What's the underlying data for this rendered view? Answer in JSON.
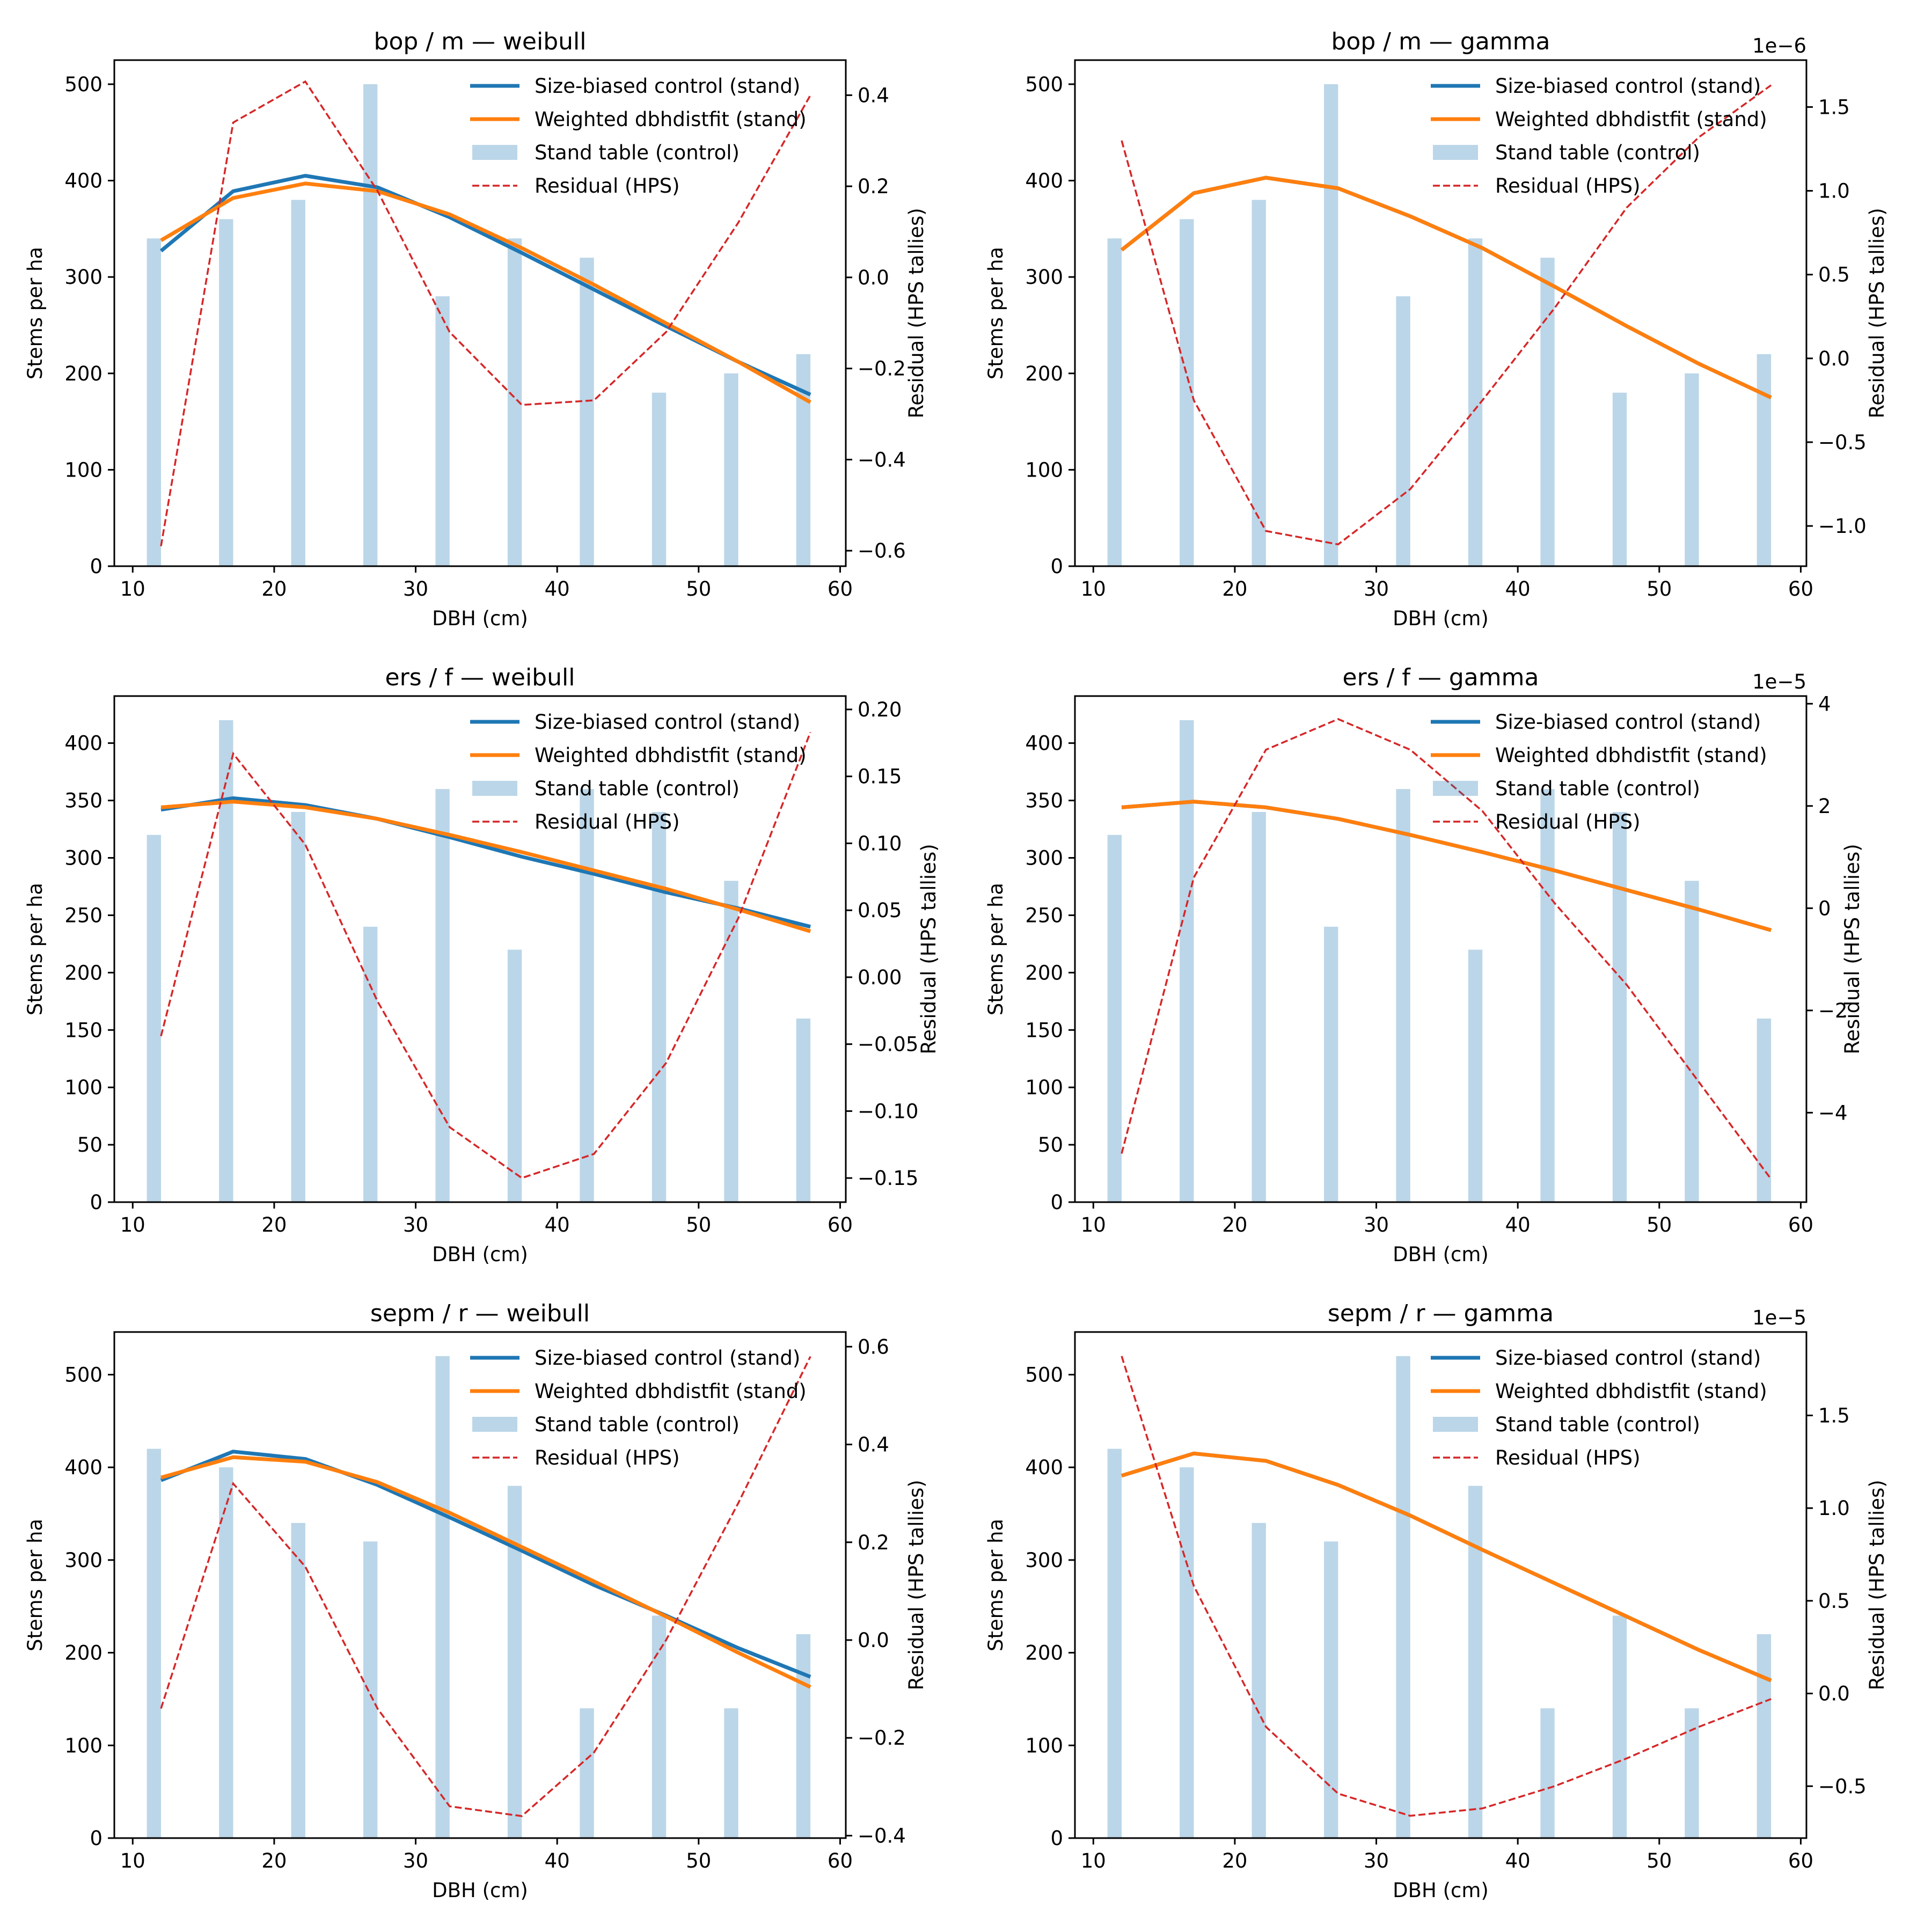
{
  "figure": {
    "panels_layout": "3 rows x 2 columns"
  },
  "colors": {
    "size_biased": "#1f77b4",
    "weighted": "#ff7f0e",
    "stand_table": "#1f77b4",
    "stand_table_alpha": 0.3,
    "residual": "#d62728"
  },
  "legend": {
    "placement": "upper-right",
    "entries": [
      {
        "label": "Size-biased control (stand)",
        "kind": "line"
      },
      {
        "label": "Weighted dbhdistfit (stand)",
        "kind": "line"
      },
      {
        "label": "Stand table (control)",
        "kind": "patch"
      },
      {
        "label": "Residual (HPS)",
        "kind": "dashed"
      }
    ]
  },
  "chart_data": [
    {
      "type": "bar+line",
      "title": "bop / m — weibull",
      "xlabel": "DBH (cm)",
      "ylabel": "Stems per ha",
      "y2label": "Residual (HPS tallies)",
      "xlim": [
        8.7,
        60.4
      ],
      "xticks": [
        10,
        20,
        30,
        40,
        50,
        60
      ],
      "ylim": [
        0,
        525
      ],
      "yticks": [
        0,
        100,
        200,
        300,
        400,
        500
      ],
      "y2lim": [
        -0.634,
        0.477
      ],
      "y2ticks": [
        -0.6,
        -0.4,
        -0.2,
        0.0,
        0.2,
        0.4
      ],
      "y2ticklabels": [
        "−0.6",
        "−0.4",
        "−0.2",
        "0.0",
        "0.2",
        "0.4"
      ],
      "y2offset": "",
      "bar_x": [
        11.5,
        16.6,
        21.7,
        26.8,
        31.9,
        37.0,
        42.1,
        47.2,
        52.3,
        57.4
      ],
      "line_x": [
        12.0,
        17.1,
        22.2,
        27.3,
        32.4,
        37.5,
        42.6,
        47.7,
        52.8,
        57.9
      ],
      "stand_table": [
        340,
        360,
        380,
        500,
        280,
        340,
        320,
        180,
        200,
        220
      ],
      "size_biased": [
        327,
        389,
        405,
        393,
        362,
        325,
        287,
        249,
        212,
        178
      ],
      "weighted": [
        338,
        382,
        397,
        389,
        365,
        330,
        292,
        252,
        212,
        170
      ],
      "residual": [
        -0.59,
        0.34,
        0.43,
        0.19,
        -0.12,
        -0.28,
        -0.27,
        -0.12,
        0.12,
        0.4
      ]
    },
    {
      "type": "bar+line",
      "title": "bop / m — gamma",
      "xlabel": "DBH (cm)",
      "ylabel": "Stems per ha",
      "y2label": "Residual (HPS tallies)",
      "xlim": [
        8.7,
        60.4
      ],
      "xticks": [
        10,
        20,
        30,
        40,
        50,
        60
      ],
      "ylim": [
        0,
        525
      ],
      "yticks": [
        0,
        100,
        200,
        300,
        400,
        500
      ],
      "y2lim": [
        -1.24,
        1.78
      ],
      "y2ticks": [
        -1.0,
        -0.5,
        0.0,
        0.5,
        1.0,
        1.5
      ],
      "y2ticklabels": [
        "−1.0",
        "−0.5",
        "0.0",
        "0.5",
        "1.0",
        "1.5"
      ],
      "y2offset": "1e−6",
      "bar_x": [
        11.5,
        16.6,
        21.7,
        26.8,
        31.9,
        37.0,
        42.1,
        47.2,
        52.3,
        57.4
      ],
      "line_x": [
        12.0,
        17.1,
        22.2,
        27.3,
        32.4,
        37.5,
        42.6,
        47.7,
        52.8,
        57.9
      ],
      "stand_table": [
        340,
        360,
        380,
        500,
        280,
        340,
        320,
        180,
        200,
        220
      ],
      "size_biased": [
        328,
        387,
        403,
        392,
        363,
        330,
        290,
        249,
        210,
        175
      ],
      "weighted": [
        328,
        387,
        403,
        392,
        363,
        330,
        290,
        249,
        210,
        175
      ],
      "residual": [
        1.3,
        -0.25,
        -1.03,
        -1.11,
        -0.78,
        -0.25,
        0.3,
        0.9,
        1.32,
        1.63
      ]
    },
    {
      "type": "bar+line",
      "title": "ers / f — weibull",
      "xlabel": "DBH (cm)",
      "ylabel": "Stems per ha",
      "y2label": "Residual (HPS tallies)",
      "xlim": [
        8.7,
        60.4
      ],
      "xticks": [
        10,
        20,
        30,
        40,
        50,
        60
      ],
      "ylim": [
        0,
        441
      ],
      "yticks": [
        0,
        50,
        100,
        150,
        200,
        250,
        300,
        350,
        400
      ],
      "y2lim": [
        -0.168,
        0.21
      ],
      "y2ticks": [
        -0.15,
        -0.1,
        -0.05,
        0.0,
        0.05,
        0.1,
        0.15,
        0.2
      ],
      "y2ticklabels": [
        "−0.15",
        "−0.10",
        "−0.05",
        "0.00",
        "0.05",
        "0.10",
        "0.15",
        "0.20"
      ],
      "y2offset": "",
      "bar_x": [
        11.5,
        16.6,
        21.7,
        26.8,
        31.9,
        37.0,
        42.1,
        47.2,
        52.3,
        57.4
      ],
      "line_x": [
        12.0,
        17.1,
        22.2,
        27.3,
        32.4,
        37.5,
        42.6,
        47.7,
        52.8,
        57.9
      ],
      "stand_table": [
        320,
        420,
        340,
        240,
        360,
        220,
        360,
        340,
        280,
        160
      ],
      "size_biased": [
        342,
        352,
        346,
        334,
        318,
        301,
        286,
        270,
        256,
        240
      ],
      "weighted": [
        344,
        349,
        344,
        334,
        320,
        305,
        289,
        273,
        255,
        236
      ],
      "residual": [
        -0.044,
        0.167,
        0.099,
        -0.018,
        -0.112,
        -0.15,
        -0.132,
        -0.064,
        0.044,
        0.183
      ]
    },
    {
      "type": "bar+line",
      "title": "ers / f — gamma",
      "xlabel": "DBH (cm)",
      "ylabel": "Stems per ha",
      "y2label": "Residual (HPS tallies)",
      "xlim": [
        8.7,
        60.4
      ],
      "xticks": [
        10,
        20,
        30,
        40,
        50,
        60
      ],
      "ylim": [
        0,
        441
      ],
      "yticks": [
        0,
        50,
        100,
        150,
        200,
        250,
        300,
        350,
        400
      ],
      "y2lim": [
        -5.75,
        4.15
      ],
      "y2ticks": [
        -4,
        -2,
        0,
        2,
        4
      ],
      "y2ticklabels": [
        "−4",
        "−2",
        "0",
        "2",
        "4"
      ],
      "y2offset": "1e−5",
      "bar_x": [
        11.5,
        16.6,
        21.7,
        26.8,
        31.9,
        37.0,
        42.1,
        47.2,
        52.3,
        57.4
      ],
      "line_x": [
        12.0,
        17.1,
        22.2,
        27.3,
        32.4,
        37.5,
        42.6,
        47.7,
        52.8,
        57.9
      ],
      "stand_table": [
        320,
        420,
        340,
        240,
        360,
        220,
        360,
        340,
        280,
        160
      ],
      "size_biased": [
        344,
        349,
        344,
        334,
        320,
        305,
        289,
        272,
        255,
        237
      ],
      "weighted": [
        344,
        349,
        344,
        334,
        320,
        305,
        289,
        272,
        255,
        237
      ],
      "residual": [
        -4.8,
        0.6,
        3.1,
        3.7,
        3.1,
        1.9,
        0.1,
        -1.5,
        -3.4,
        -5.3
      ]
    },
    {
      "type": "bar+line",
      "title": "sepm / r — weibull",
      "xlabel": "DBH (cm)",
      "ylabel": "Stems per ha",
      "y2label": "Residual (HPS tallies)",
      "xlim": [
        8.7,
        60.4
      ],
      "xticks": [
        10,
        20,
        30,
        40,
        50,
        60
      ],
      "ylim": [
        0,
        546
      ],
      "yticks": [
        0,
        100,
        200,
        300,
        400,
        500
      ],
      "y2lim": [
        -0.405,
        0.63
      ],
      "y2ticks": [
        -0.4,
        -0.2,
        0.0,
        0.2,
        0.4,
        0.6
      ],
      "y2ticklabels": [
        "−0.4",
        "−0.2",
        "0.0",
        "0.2",
        "0.4",
        "0.6"
      ],
      "y2offset": "",
      "bar_x": [
        11.5,
        16.6,
        21.7,
        26.8,
        31.9,
        37.0,
        42.1,
        47.2,
        52.3,
        57.4
      ],
      "line_x": [
        12.0,
        17.1,
        22.2,
        27.3,
        32.4,
        37.5,
        42.6,
        47.7,
        52.8,
        57.9
      ],
      "stand_table": [
        420,
        400,
        340,
        320,
        520,
        380,
        140,
        240,
        140,
        220
      ],
      "size_biased": [
        386,
        417,
        409,
        381,
        346,
        310,
        273,
        240,
        205,
        174
      ],
      "weighted": [
        389,
        411,
        406,
        384,
        351,
        314,
        277,
        239,
        200,
        163
      ],
      "residual": [
        -0.14,
        0.32,
        0.15,
        -0.14,
        -0.34,
        -0.36,
        -0.23,
        0.0,
        0.28,
        0.58
      ]
    },
    {
      "type": "bar+line",
      "title": "sepm / r — gamma",
      "xlabel": "DBH (cm)",
      "ylabel": "Stems per ha",
      "y2label": "Residual (HPS tallies)",
      "xlim": [
        8.7,
        60.4
      ],
      "xticks": [
        10,
        20,
        30,
        40,
        50,
        60
      ],
      "ylim": [
        0,
        546
      ],
      "yticks": [
        0,
        100,
        200,
        300,
        400,
        500
      ],
      "y2lim": [
        -0.78,
        1.95
      ],
      "y2ticks": [
        -0.5,
        0.0,
        0.5,
        1.0,
        1.5
      ],
      "y2ticklabels": [
        "−0.5",
        "0.0",
        "0.5",
        "1.0",
        "1.5"
      ],
      "y2offset": "1e−5",
      "bar_x": [
        11.5,
        16.6,
        21.7,
        26.8,
        31.9,
        37.0,
        42.1,
        47.2,
        52.3,
        57.4
      ],
      "line_x": [
        12.0,
        17.1,
        22.2,
        27.3,
        32.4,
        37.5,
        42.6,
        47.7,
        52.8,
        57.9
      ],
      "stand_table": [
        420,
        400,
        340,
        320,
        520,
        380,
        140,
        240,
        140,
        220
      ],
      "size_biased": [
        391,
        415,
        407,
        381,
        348,
        311,
        275,
        239,
        203,
        170
      ],
      "weighted": [
        391,
        415,
        407,
        381,
        348,
        311,
        275,
        239,
        203,
        170
      ],
      "residual": [
        1.82,
        0.58,
        -0.18,
        -0.54,
        -0.66,
        -0.62,
        -0.5,
        -0.35,
        -0.18,
        -0.03
      ]
    }
  ]
}
